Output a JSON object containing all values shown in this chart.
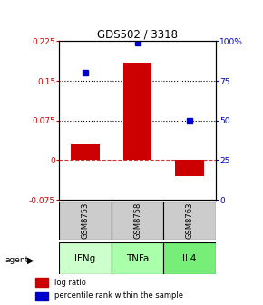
{
  "title": "GDS502 / 3318",
  "samples": [
    "GSM8753",
    "GSM8758",
    "GSM8763"
  ],
  "agents": [
    "IFNg",
    "TNFa",
    "IL4"
  ],
  "log_ratios": [
    0.03,
    0.185,
    -0.03
  ],
  "percentile_ranks": [
    80,
    99,
    50
  ],
  "bar_color": "#cc0000",
  "dot_color": "#0000cc",
  "ylim_left": [
    -0.075,
    0.225
  ],
  "yticks_left": [
    -0.075,
    0.0,
    0.075,
    0.15,
    0.225
  ],
  "ytick_labels_left": [
    "-0.075",
    "0",
    "0.075",
    "0.15",
    "0.225"
  ],
  "ylim_right": [
    0,
    100
  ],
  "yticks_right": [
    0,
    25,
    50,
    75,
    100
  ],
  "ytick_labels_right": [
    "0",
    "25",
    "50",
    "75",
    "100%"
  ],
  "hlines_dotted": [
    0.075,
    0.15
  ],
  "zero_line_y": 0.0,
  "sample_box_color": "#cccccc",
  "agent_colors": [
    "#ccffcc",
    "#aaffaa",
    "#77ee77"
  ],
  "bar_width": 0.55
}
